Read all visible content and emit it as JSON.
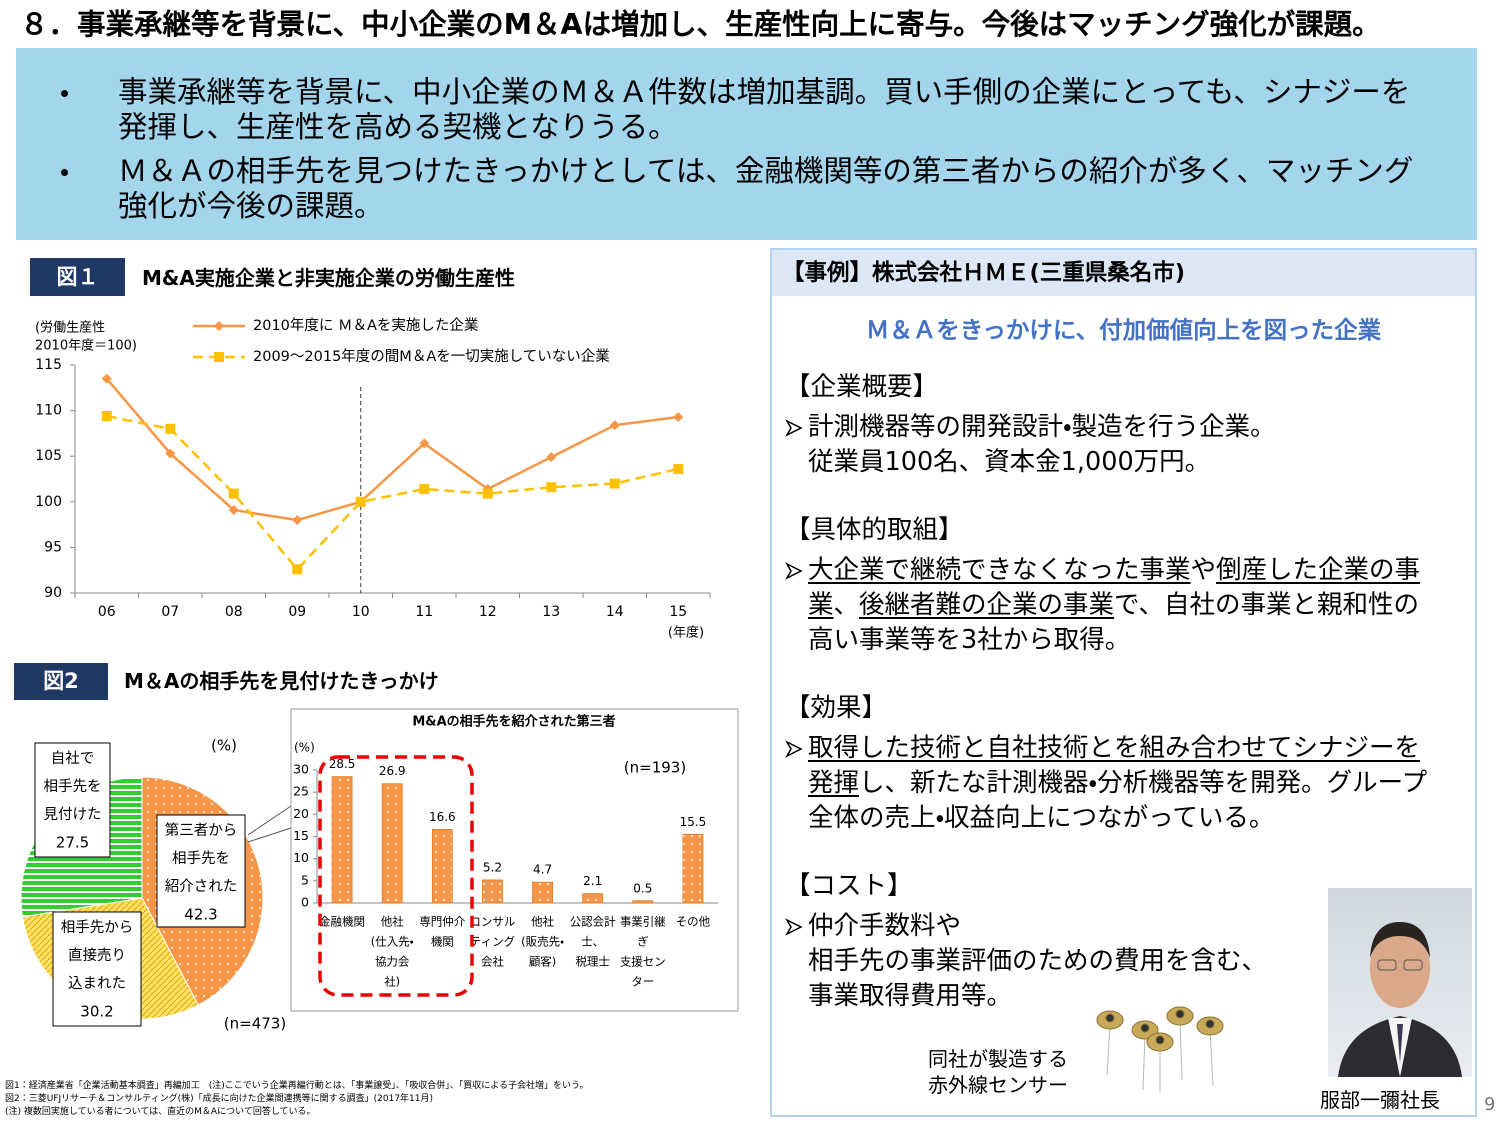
{
  "title": "８．事業承継等を背景に、中小企業のM＆Aは増加し、生産性向上に寄与。今後はマッチング強化が課題。",
  "summary": {
    "bullets": [
      "事業承継等を背景に、中小企業のＭ＆Ａ件数は増加基調。買い手側の企業にとっても、シナジーを発揮し、生産性を高める契機となりうる。",
      "Ｍ＆Ａの相手先を見つけたきっかけとしては、金融機関等の第三者からの紹介が多く、マッチング強化が今後の課題。"
    ]
  },
  "figures": [
    {
      "badge": "図１",
      "title": "M&A実施企業と非実施企業の労働生産性"
    },
    {
      "badge": "図2",
      "title": "M＆Aの相手先を見付けたきっかけ"
    }
  ],
  "chart_data": [
    {
      "type": "line",
      "ylabel": [
        "(労働生産性",
        "2010年度＝100)"
      ],
      "xlabel": "(年度)",
      "categories": [
        "06",
        "07",
        "08",
        "09",
        "10",
        "11",
        "12",
        "13",
        "14",
        "15"
      ],
      "series": [
        {
          "name": "2010年度に Ｍ＆Aを実施した企業",
          "color": "#f79646",
          "marker": "diamond",
          "dashed": false,
          "values": [
            113.5,
            105.3,
            99.1,
            98.0,
            100,
            106.4,
            101.4,
            104.9,
            108.4,
            109.3
          ]
        },
        {
          "name": "2009～2015年度の間M＆Aを一切実施していない企業",
          "color": "#ffc000",
          "marker": "square",
          "dashed": true,
          "values": [
            109.4,
            108.0,
            100.9,
            92.6,
            100,
            101.4,
            100.9,
            101.6,
            102.0,
            103.6
          ]
        }
      ],
      "ylim": [
        90,
        115
      ],
      "yticks": [
        90,
        95,
        100,
        105,
        110,
        115
      ]
    },
    {
      "type": "pie",
      "unit": "(%)",
      "note": "(n=473)",
      "categories": [
        [
          "第三者から",
          "相手先を",
          "紹介された"
        ],
        [
          "相手先から",
          "直接売り",
          "込まれた"
        ],
        [
          "自社で",
          "相手先を",
          "見付けた"
        ]
      ],
      "values": [
        42.3,
        30.2,
        27.5
      ],
      "colors": [
        "#f79646",
        "#ffe066",
        "#33cc33"
      ]
    },
    {
      "type": "bar",
      "title": "M&Aの相手先を紹介された第三者",
      "unit": "(%)",
      "note": "(n=193)",
      "categories": [
        [
          "金融機関"
        ],
        [
          "他社",
          "(仕入先・",
          "協力会",
          "社)"
        ],
        [
          "専門仲介",
          "機関"
        ],
        [
          "コンサル",
          "ティング",
          "会社"
        ],
        [
          "他社",
          "(販売先・",
          "顧客)"
        ],
        [
          "公認会計",
          "士、",
          "税理士"
        ],
        [
          "事業引継",
          "ぎ",
          "支援セン",
          "ター"
        ],
        [
          "その他"
        ]
      ],
      "values": [
        28.5,
        26.9,
        16.6,
        5.2,
        4.7,
        2.1,
        0.5,
        15.5
      ],
      "color": "#f79646",
      "ylim": [
        0,
        30
      ],
      "yticks": [
        0,
        5,
        10,
        15,
        20,
        25,
        30
      ]
    }
  ],
  "case": {
    "header": "【事例】株式会社ＨＭＥ(三重県桑名市)",
    "subtitle": "Ｍ＆Ａをきっかけに、付加価値向上を図った企業",
    "sections": [
      {
        "heading": "【企業概要】",
        "paragraphs": [
          [
            {
              "text": "計測機器等の開発設計・製造を行う企業。",
              "underline": false
            }
          ],
          [
            {
              "text": "従業員100名、資本金1,000万円。",
              "underline": false
            }
          ]
        ]
      },
      {
        "heading": "【具体的取組】",
        "paragraphs": [
          [
            {
              "text": "大企業で継続できなくなった事業",
              "underline": true
            },
            {
              "text": "や",
              "underline": false
            },
            {
              "text": "倒産した企業の事業",
              "underline": true
            },
            {
              "text": "、",
              "underline": false
            },
            {
              "text": "後継者難の企業の事業",
              "underline": true
            },
            {
              "text": "で、自社の事業と親和性の高い事業等を3社から取得。",
              "underline": false
            }
          ]
        ]
      },
      {
        "heading": "【効果】",
        "paragraphs": [
          [
            {
              "text": "取得した技術と自社技術とを組み合わせてシナジーを発揮",
              "underline": true
            },
            {
              "text": "し、新たな計測機器・分析機器等を開発。グループ全体の売上・収益向上につながっている。",
              "underline": false
            }
          ]
        ]
      },
      {
        "heading": "【コスト】",
        "paragraphs": [
          [
            {
              "text": "仲介手数料や",
              "underline": false
            }
          ],
          [
            {
              "text": "相手先の事業評価のための費用を含む、",
              "underline": false
            }
          ],
          [
            {
              "text": "事業取得費用等。",
              "underline": false
            }
          ]
        ]
      }
    ],
    "sensor_caption": [
      "同社が製造する",
      "赤外線センサー"
    ],
    "photo_caption": "服部一彌社長"
  },
  "footnotes": [
    "図1：経済産業省「企業活動基本調査」再編加工　(注)ここでいう企業再編行動とは、「事業譲受」、「吸収合併」、「買収による子会社増」をいう。",
    "図2：三菱UFJリサーチ＆コンサルティング(株)「成長に向けた企業間連携等に関する調査」(2017年11月)",
    "(注) 複数回実施している者については、直近のM＆Aについて回答している。"
  ],
  "page_number": "9"
}
